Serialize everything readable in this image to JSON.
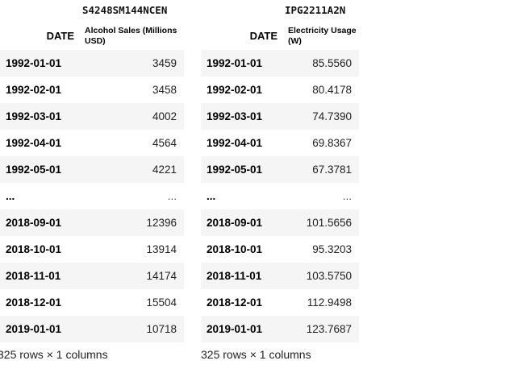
{
  "dataframes": [
    {
      "column_id": "S4248SM144NCEN",
      "index_header": "DATE",
      "value_header": "Alcohol Sales (Millions USD)",
      "rows": [
        {
          "date": "1992-01-01",
          "value": "3459"
        },
        {
          "date": "1992-02-01",
          "value": "3458"
        },
        {
          "date": "1992-03-01",
          "value": "4002"
        },
        {
          "date": "1992-04-01",
          "value": "4564"
        },
        {
          "date": "1992-05-01",
          "value": "4221"
        },
        {
          "date": "...",
          "value": "..."
        },
        {
          "date": "2018-09-01",
          "value": "12396"
        },
        {
          "date": "2018-10-01",
          "value": "13914"
        },
        {
          "date": "2018-11-01",
          "value": "14174"
        },
        {
          "date": "2018-12-01",
          "value": "15504"
        },
        {
          "date": "2019-01-01",
          "value": "10718"
        }
      ],
      "shape_text": "325 rows × 1 columns"
    },
    {
      "column_id": "IPG2211A2N",
      "index_header": "DATE",
      "value_header": "Electricity Usage (W)",
      "rows": [
        {
          "date": "1992-01-01",
          "value": "85.5560"
        },
        {
          "date": "1992-02-01",
          "value": "80.4178"
        },
        {
          "date": "1992-03-01",
          "value": "74.7390"
        },
        {
          "date": "1992-04-01",
          "value": "69.8367"
        },
        {
          "date": "1992-05-01",
          "value": "67.3781"
        },
        {
          "date": "...",
          "value": "..."
        },
        {
          "date": "2018-09-01",
          "value": "101.5656"
        },
        {
          "date": "2018-10-01",
          "value": "95.3203"
        },
        {
          "date": "2018-11-01",
          "value": "103.5750"
        },
        {
          "date": "2018-12-01",
          "value": "112.9498"
        },
        {
          "date": "2019-01-01",
          "value": "123.7687"
        }
      ],
      "shape_text": "325 rows × 1 columns"
    }
  ]
}
